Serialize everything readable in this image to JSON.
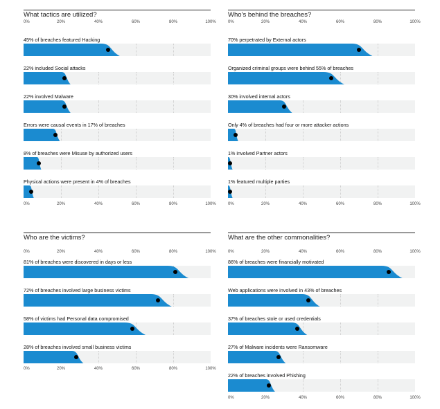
{
  "colors": {
    "bar": "#1b8bd0",
    "track": "#f1f2f2",
    "dot": "#000000"
  },
  "chart_data": [
    {
      "type": "bar",
      "title": "What tactics are utilized?",
      "xlim": [
        0,
        100
      ],
      "ticks": [
        "0%",
        "20%",
        "40%",
        "60%",
        "80%",
        "100%"
      ],
      "rows": [
        {
          "label": "45% of breaches featured Hacking",
          "value": 45
        },
        {
          "label": "22% included Social attacks",
          "value": 22
        },
        {
          "label": "22% involved Malware",
          "value": 22
        },
        {
          "label": "Errors were causal events in 17% of breaches",
          "value": 17
        },
        {
          "label": "8% of breaches were Misuse by authorized users",
          "value": 8
        },
        {
          "label": "Physical actions were present in 4% of breaches",
          "value": 4
        }
      ]
    },
    {
      "type": "bar",
      "title": "Who’s behind the breaches?",
      "xlim": [
        0,
        100
      ],
      "ticks": [
        "0%",
        "20%",
        "40%",
        "60%",
        "80%",
        "100%"
      ],
      "rows": [
        {
          "label": "70% perpetrated by External actors",
          "value": 70
        },
        {
          "label": "Organized criminal groups were behind 55% of breaches",
          "value": 55
        },
        {
          "label": "30% involved internal actors",
          "value": 30
        },
        {
          "label": "Only 4% of breaches had four or more attacker actions",
          "value": 4
        },
        {
          "label": "1% involved Partner actors",
          "value": 1
        },
        {
          "label": "1% featured multiple parties",
          "value": 1
        }
      ]
    },
    {
      "type": "bar",
      "title": "Who are the victims?",
      "xlim": [
        0,
        100
      ],
      "ticks": [
        "0%",
        "20%",
        "40%",
        "60%",
        "80%",
        "100%"
      ],
      "rows": [
        {
          "label": "81% of breaches were discovered in days or less",
          "value": 81
        },
        {
          "label": "72% of breaches involved large business victims",
          "value": 72
        },
        {
          "label": "58% of victims had Personal data compromised",
          "value": 58
        },
        {
          "label": "28% of breaches involved small business victims",
          "value": 28
        }
      ]
    },
    {
      "type": "bar",
      "title": "What are the other commonalities?",
      "xlim": [
        0,
        100
      ],
      "ticks": [
        "0%",
        "20%",
        "40%",
        "60%",
        "80%",
        "100%"
      ],
      "rows": [
        {
          "label": "86% of breaches were financially motivated",
          "value": 86
        },
        {
          "label": "Web applications were involved in 43% of breaches",
          "value": 43
        },
        {
          "label": "37% of breaches stole or used credentials",
          "value": 37
        },
        {
          "label": "27% of Malware incidents were Ransomware",
          "value": 27
        },
        {
          "label": "22% of breaches involved Phishing",
          "value": 22
        }
      ]
    }
  ]
}
